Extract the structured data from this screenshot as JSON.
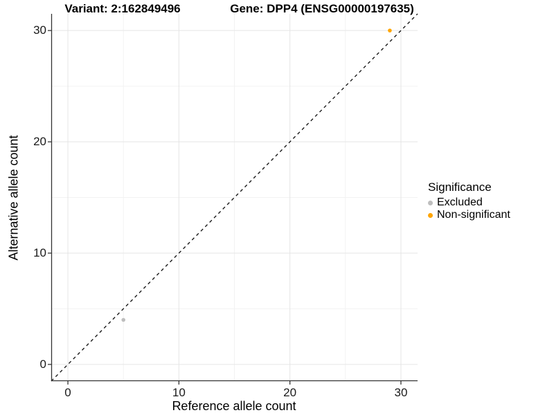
{
  "chart_data": {
    "type": "scatter",
    "titles": [
      "Variant: 2:162849496",
      "Gene: DPP4 (ENSG00000197635)"
    ],
    "xlabel": "Reference allele count",
    "ylabel": "Alternative allele count",
    "xlim": [
      -1.5,
      31.5
    ],
    "ylim": [
      -1.5,
      31.5
    ],
    "x_ticks": [
      0,
      10,
      20,
      30
    ],
    "y_ticks": [
      0,
      10,
      20,
      30
    ],
    "x_minor_ticks": [
      5,
      15,
      25
    ],
    "y_minor_ticks": [
      5,
      15,
      25
    ],
    "grid": "major and minor gridlines, light gray on white",
    "legend_position": "right",
    "series": [
      {
        "name": "Excluded",
        "color": "#bebebe",
        "points": [
          [
            5,
            4
          ]
        ]
      },
      {
        "name": "Non-significant",
        "color": "#ffa500",
        "points": [
          [
            29,
            30
          ]
        ]
      }
    ],
    "reference_line": {
      "type": "identity y=x",
      "style": "dashed",
      "color": "#1a1a1a"
    }
  },
  "legend": {
    "title": "Significance"
  },
  "colors": {
    "background": "#ffffff",
    "axis_line": "#333333",
    "tick_text": "#1a1a1a",
    "grid_major": "#e5e5e5",
    "grid_minor": "#f2f2f2",
    "dashed_line": "#1a1a1a"
  }
}
